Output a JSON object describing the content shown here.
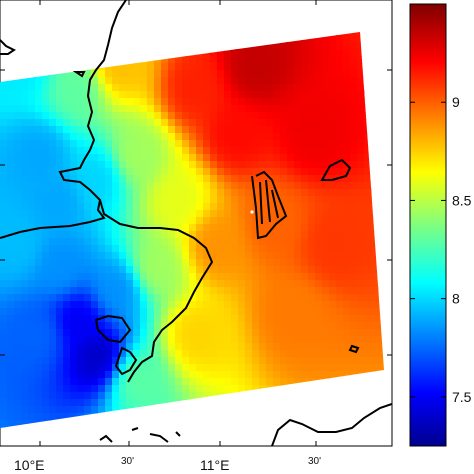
{
  "chart_data": {
    "type": "heatmap",
    "title": "",
    "colormap": "jet",
    "colorbar": {
      "range": [
        7.25,
        9.5
      ],
      "ticks": [
        {
          "value": 9,
          "label": "9"
        },
        {
          "value": 8.5,
          "label": "8.5"
        },
        {
          "value": 8,
          "label": "8"
        },
        {
          "value": 7.5,
          "label": "7.5"
        }
      ]
    },
    "x_ticks": [
      {
        "lon": 10.0,
        "label": "10°E",
        "sup": "O"
      },
      {
        "lon": 10.5,
        "label": "30'"
      },
      {
        "lon": 11.0,
        "label": "11°E",
        "sup": "O"
      },
      {
        "lon": 11.5,
        "label": "30'"
      }
    ],
    "y_ticks_visible": 5,
    "colors": {
      "low": "#00008f",
      "mid": "#7fff7f",
      "high": "#800000",
      "coastline": "#000000"
    },
    "field_anchors": [
      {
        "x": 0.05,
        "y": 0.15,
        "v": 8.05
      },
      {
        "x": 0.1,
        "y": 0.35,
        "v": 7.9
      },
      {
        "x": 0.05,
        "y": 0.55,
        "v": 7.95
      },
      {
        "x": 0.15,
        "y": 0.6,
        "v": 7.85
      },
      {
        "x": 0.1,
        "y": 0.75,
        "v": 7.75
      },
      {
        "x": 0.2,
        "y": 0.72,
        "v": 7.5
      },
      {
        "x": 0.25,
        "y": 0.8,
        "v": 7.4
      },
      {
        "x": 0.3,
        "y": 0.65,
        "v": 7.85
      },
      {
        "x": 0.25,
        "y": 0.4,
        "v": 8.0
      },
      {
        "x": 0.2,
        "y": 0.2,
        "v": 8.3
      },
      {
        "x": 0.3,
        "y": 0.15,
        "v": 8.8
      },
      {
        "x": 0.35,
        "y": 0.35,
        "v": 8.45
      },
      {
        "x": 0.45,
        "y": 0.45,
        "v": 8.6
      },
      {
        "x": 0.4,
        "y": 0.6,
        "v": 8.45
      },
      {
        "x": 0.5,
        "y": 0.75,
        "v": 8.75
      },
      {
        "x": 0.55,
        "y": 0.55,
        "v": 8.9
      },
      {
        "x": 0.6,
        "y": 0.3,
        "v": 9.2
      },
      {
        "x": 0.65,
        "y": 0.15,
        "v": 9.35
      },
      {
        "x": 0.7,
        "y": 0.5,
        "v": 9.0
      },
      {
        "x": 0.75,
        "y": 0.7,
        "v": 8.95
      },
      {
        "x": 0.8,
        "y": 0.3,
        "v": 9.25
      },
      {
        "x": 0.85,
        "y": 0.55,
        "v": 9.1
      },
      {
        "x": 0.5,
        "y": 0.2,
        "v": 9.15
      },
      {
        "x": 0.15,
        "y": 0.45,
        "v": 7.9
      },
      {
        "x": 0.35,
        "y": 0.85,
        "v": 8.3
      }
    ]
  }
}
